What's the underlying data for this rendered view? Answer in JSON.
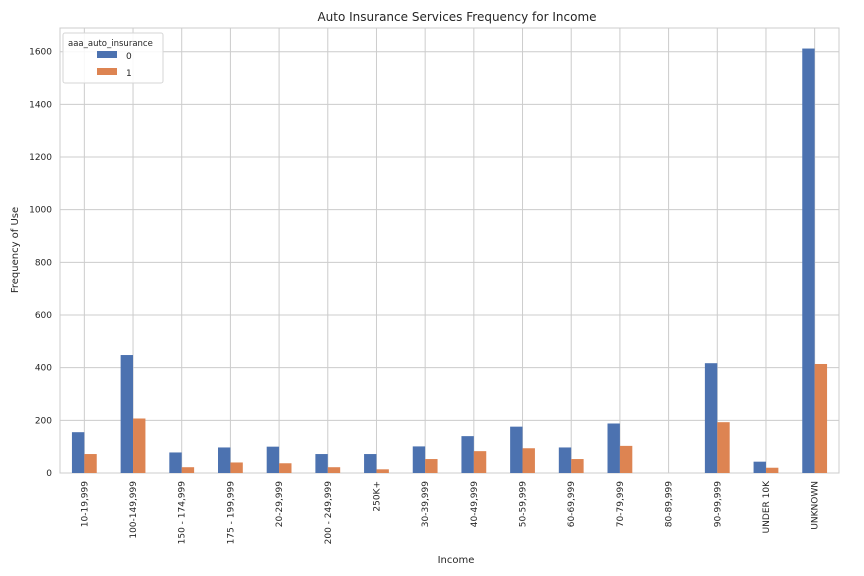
{
  "chart_data": {
    "type": "bar",
    "title": "Auto Insurance Services Frequency for Income",
    "xlabel": "Income",
    "ylabel": "Frequency of Use",
    "ylim": [
      0,
      1690
    ],
    "yticks": [
      0,
      200,
      400,
      600,
      800,
      1000,
      1200,
      1400,
      1600
    ],
    "grid": true,
    "legend": {
      "title": "aaa_auto_insurance",
      "placement": "top-left"
    },
    "categories": [
      "10-19,999",
      "100-149,999",
      "150 - 174,999",
      "175 - 199,999",
      "20-29,999",
      "200 - 249,999",
      "250K+",
      "30-39,999",
      "40-49,999",
      "50-59,999",
      "60-69,999",
      "70-79,999",
      "80-89,999",
      "90-99,999",
      "UNDER 10K",
      "UNKNOWN"
    ],
    "series": [
      {
        "name": "0",
        "color": "#4c72b0",
        "values": [
          155,
          448,
          78,
          97,
          100,
          72,
          72,
          101,
          140,
          176,
          97,
          188,
          0,
          417,
          43,
          1612
        ]
      },
      {
        "name": "1",
        "color": "#dd8452",
        "values": [
          72,
          207,
          22,
          40,
          37,
          22,
          14,
          53,
          83,
          94,
          53,
          103,
          0,
          193,
          20,
          414
        ]
      }
    ]
  }
}
